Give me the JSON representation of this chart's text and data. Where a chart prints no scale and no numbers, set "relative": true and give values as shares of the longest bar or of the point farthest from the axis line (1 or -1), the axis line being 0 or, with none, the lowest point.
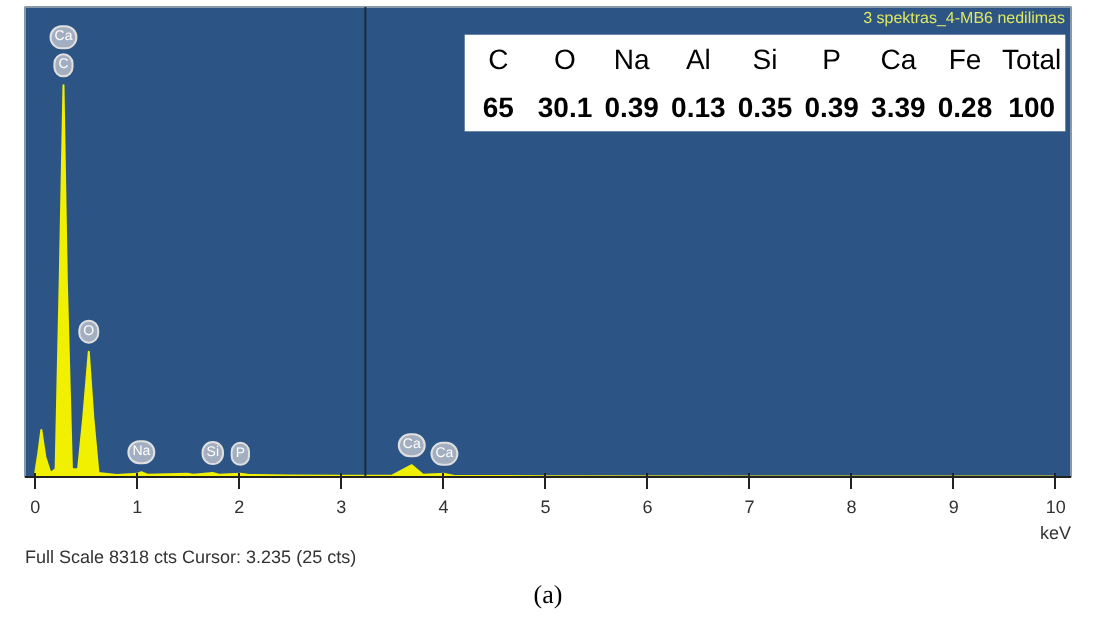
{
  "chart_data": {
    "type": "area",
    "subtitle": "3 spektras_4-MB6 nedilimas",
    "xlabel": "keV",
    "relative": true,
    "color": "#f0f000",
    "x": [
      0,
      0.03,
      0.06,
      0.1,
      0.15,
      0.2,
      0.24,
      0.277,
      0.31,
      0.36,
      0.42,
      0.47,
      0.525,
      0.57,
      0.62,
      0.8,
      1.0,
      1.04,
      1.1,
      1.49,
      1.55,
      1.74,
      1.8,
      2.01,
      2.1,
      2.5,
      3.0,
      3.5,
      3.69,
      3.8,
      4.01,
      4.1,
      5,
      10
    ],
    "values": [
      0.01,
      0.06,
      0.12,
      0.05,
      0.01,
      0.02,
      0.5,
      1.0,
      0.5,
      0.02,
      0.02,
      0.15,
      0.32,
      0.15,
      0.01,
      0.005,
      0.008,
      0.012,
      0.006,
      0.008,
      0.006,
      0.01,
      0.006,
      0.008,
      0.005,
      0.004,
      0.003,
      0.004,
      0.03,
      0.006,
      0.008,
      0.003,
      0.002,
      0.001
    ],
    "xlim": [
      -0.1,
      10.15
    ],
    "xticks": [
      0,
      1,
      2,
      3,
      4,
      5,
      6,
      7,
      8,
      9,
      10
    ],
    "grid": false,
    "ref_lines": [
      {
        "axis": "x",
        "value": 3.235,
        "color": "#1a2a3a"
      }
    ],
    "annotations": [
      {
        "text": "C",
        "x": 0.277,
        "y": 1.0
      },
      {
        "text": "Ca",
        "x": 0.277,
        "y": 1.0
      },
      {
        "text": "O",
        "x": 0.525,
        "y": 0.32
      },
      {
        "text": "Na",
        "x": 1.04,
        "y": 0.012
      },
      {
        "text": "Si",
        "x": 1.74,
        "y": 0.01
      },
      {
        "text": "P",
        "x": 2.01,
        "y": 0.008
      },
      {
        "text": "Ca",
        "x": 3.69,
        "y": 0.03
      },
      {
        "text": "Ca",
        "x": 4.01,
        "y": 0.008
      },
      "Full Scale 8318 cts Cursor: 3.235  (25 cts)",
      "(a)",
      "C",
      "O",
      "Na",
      "Al",
      "Si",
      "P",
      "Ca",
      "Fe",
      "Total",
      "65",
      "30.1",
      "0.39",
      "0.13",
      "0.35",
      "0.39",
      "3.39",
      "0.28",
      "100"
    ]
  }
}
